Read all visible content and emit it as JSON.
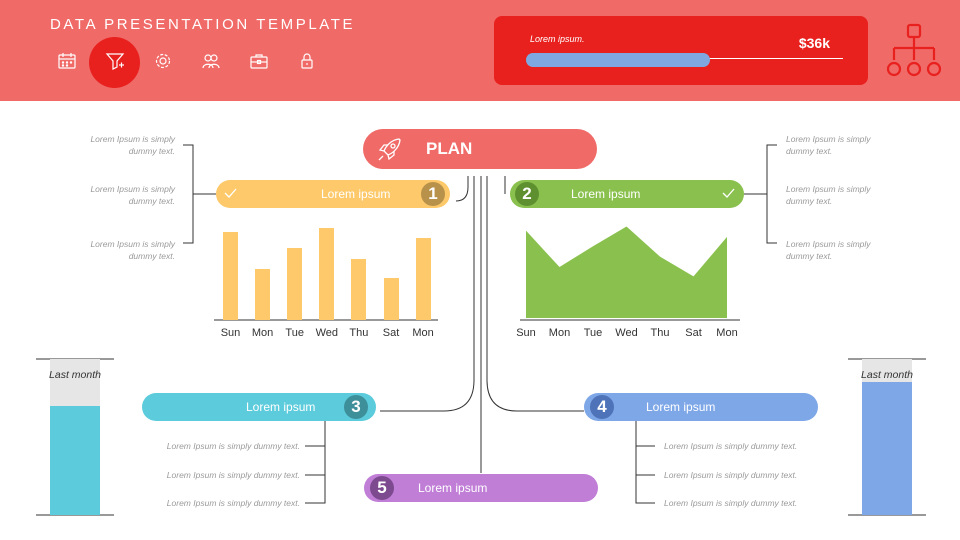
{
  "header": {
    "title": "DATA PRESENTATION TEMPLATE",
    "icons": [
      "calendar-icon",
      "funnel-icon",
      "gear-icon",
      "team-icon",
      "briefcase-icon",
      "lock-icon"
    ],
    "active_icon": "funnel-icon",
    "revenue": {
      "label": "Lorem ipsum.",
      "value": "$36k",
      "progress_percent": 60
    }
  },
  "plan": {
    "label": "PLAN"
  },
  "steps": [
    {
      "number": "1",
      "label": "Lorem ipsum",
      "color": "#fdc96a"
    },
    {
      "number": "2",
      "label": "Lorem ipsum",
      "color": "#8ac14e"
    },
    {
      "number": "3",
      "label": "Lorem ipsum",
      "color": "#5ccbdb"
    },
    {
      "number": "4",
      "label": "Lorem ipsum",
      "color": "#7ea7e8"
    },
    {
      "number": "5",
      "label": "Lorem ipsum",
      "color": "#c07ed7"
    }
  ],
  "notes_left": [
    "Lorem Ipsum is simply\ndummy text.",
    "Lorem Ipsum is simply\ndummy text.",
    "Lorem Ipsum is simply\ndummy text."
  ],
  "notes_right": [
    "Lorem Ipsum is simply\ndummy text.",
    "Lorem Ipsum is simply\ndummy text.",
    "Lorem Ipsum is simply\ndummy text."
  ],
  "notes_bottom_left": [
    "Lorem Ipsum is simply dummy text.",
    "Lorem Ipsum is simply dummy text.",
    "Lorem Ipsum is simply dummy text."
  ],
  "notes_bottom_right": [
    "Lorem Ipsum is simply dummy text.",
    "Lorem Ipsum is simply dummy text.",
    "Lorem Ipsum is simply dummy text."
  ],
  "chart_data": [
    {
      "type": "bar",
      "categories": [
        "Sun",
        "Mon",
        "Tue",
        "Wed",
        "Thu",
        "Sat",
        "Mon"
      ],
      "values": [
        85,
        49,
        69,
        88,
        59,
        40,
        79
      ],
      "ylim": [
        0,
        100
      ],
      "color": "#fdc96a"
    },
    {
      "type": "area",
      "categories": [
        "Sun",
        "Mon",
        "Tue",
        "Wed",
        "Thu",
        "Sat",
        "Mon"
      ],
      "values": [
        84,
        49,
        69,
        88,
        59,
        40,
        78
      ],
      "ylim": [
        0,
        100
      ],
      "color": "#8ac14e"
    }
  ],
  "thermometers": [
    {
      "label": "Last month",
      "fill_percent": 70,
      "color": "#5ccbdb"
    },
    {
      "label": "Last month",
      "fill_percent": 85,
      "color": "#7ea7e8"
    }
  ]
}
